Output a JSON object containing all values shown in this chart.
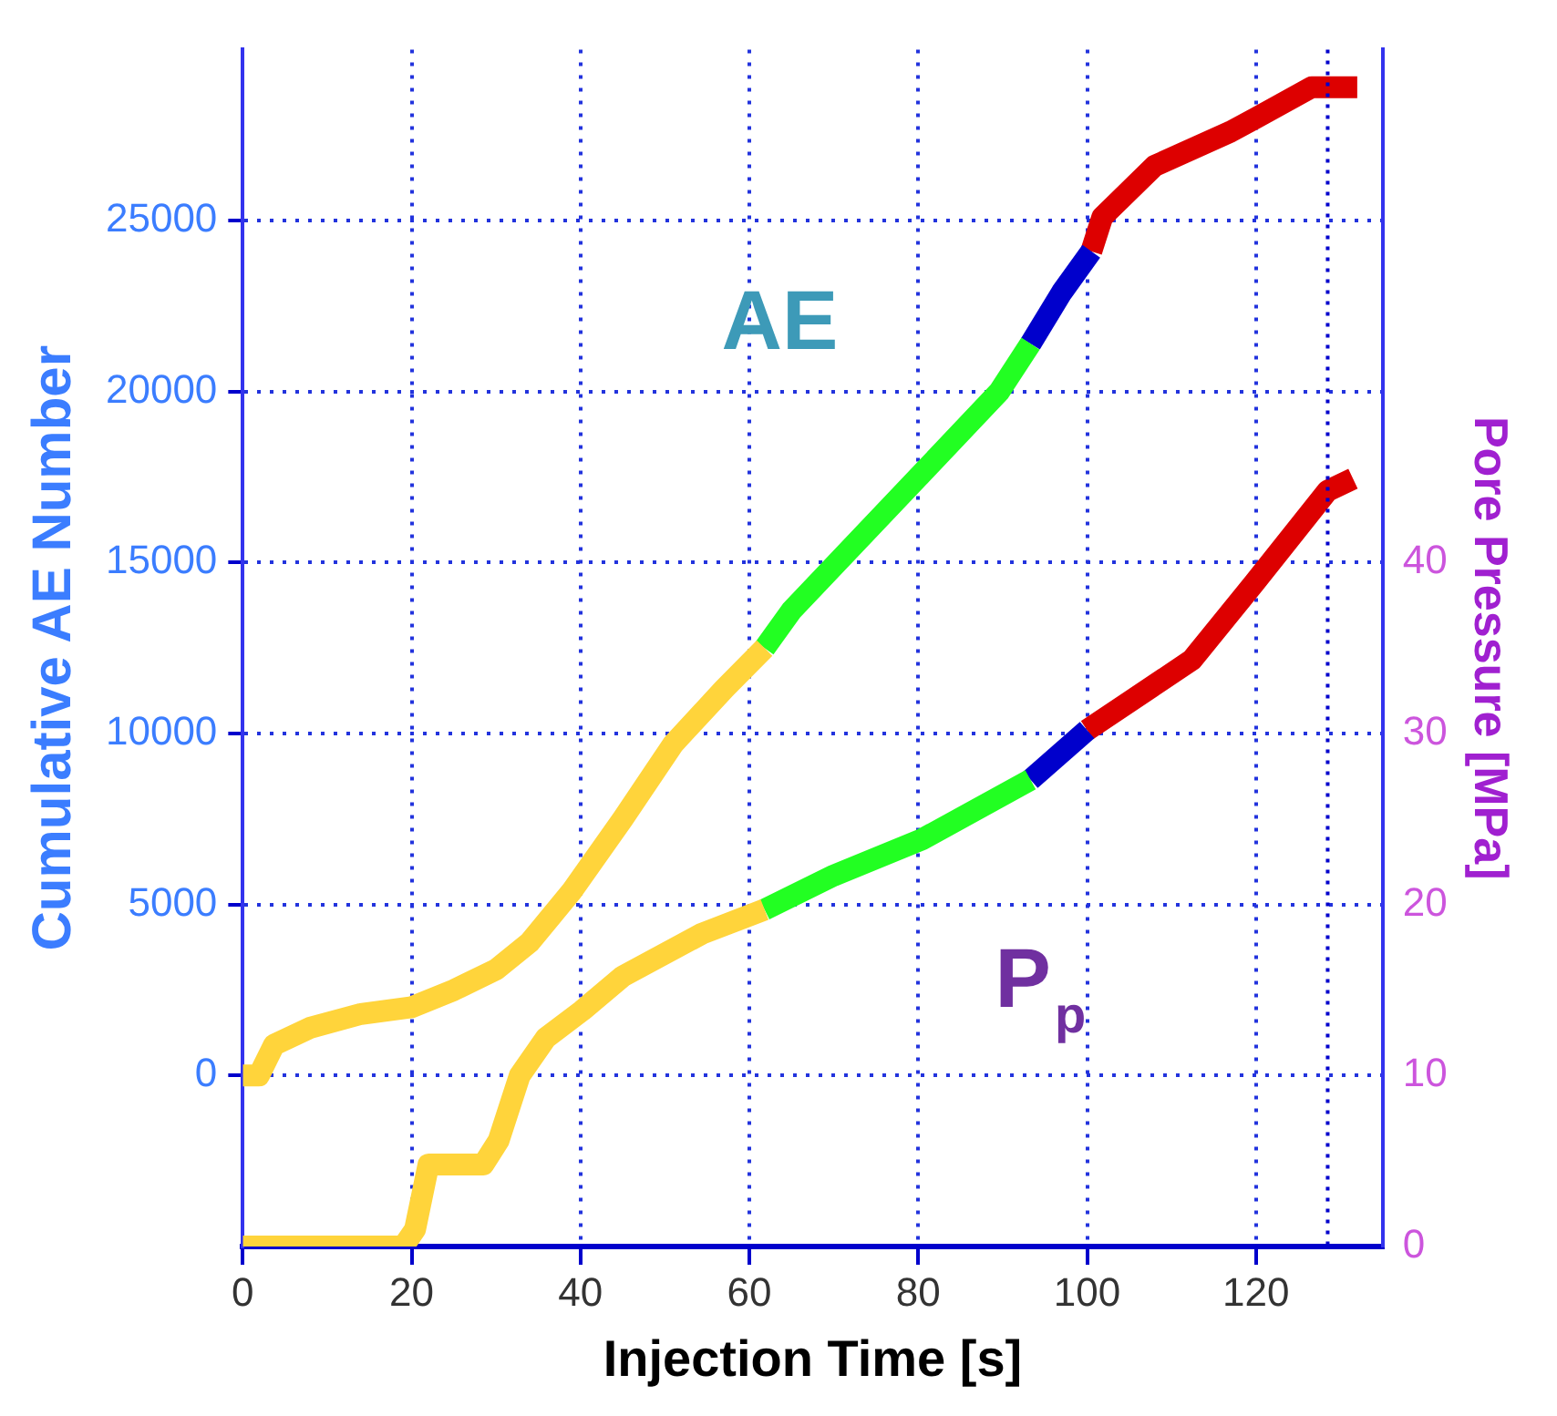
{
  "chart_data": {
    "type": "line",
    "xlabel": "Injection Time [s]",
    "ylabel": "Cumulative AE Number",
    "y2label": "Pore Pressure [MPa]",
    "annotations": [
      "AE",
      "P$_{p}$"
    ],
    "xlim": [
      0,
      135
    ],
    "xticks": [
      0,
      20,
      40,
      60,
      80,
      100,
      120
    ],
    "ylim": [
      -5000,
      30000
    ],
    "yticks": [
      0,
      5000,
      10000,
      15000,
      20000,
      25000
    ],
    "y2lim": [
      0,
      70
    ],
    "y2ticks": [
      0,
      10,
      20,
      30,
      40
    ],
    "grid": true,
    "legend": false,
    "marker": "none",
    "line_style": "solid",
    "ref_lines": [
      {
        "axis": "x",
        "value": 128.5,
        "label": null,
        "color": "#0000cc",
        "line_style": "dotted"
      }
    ],
    "series": [
      {
        "color": "#ffd43b",
        "x": [
          0,
          1.9,
          3.7,
          8,
          14,
          20,
          25,
          30,
          34,
          39,
          45,
          51,
          57,
          61.8
        ],
        "values": [
          0,
          0,
          900,
          1400,
          1800,
          2000,
          2500,
          3100,
          3900,
          5400,
          7500,
          9700,
          11300,
          12500
        ]
      },
      {
        "color": "#22ff22",
        "x": [
          61.8,
          65,
          80.4,
          89.6,
          93.3
        ],
        "values": [
          12500,
          13600,
          17600,
          20000,
          21400
        ]
      },
      {
        "color": "#0000cc",
        "x": [
          93.3,
          97,
          100.5
        ],
        "values": [
          21400,
          22900,
          24100
        ]
      },
      {
        "color": "#dd0000",
        "x": [
          100.5,
          101.8,
          108,
          117,
          120,
          126.6,
          132
        ],
        "values": [
          24100,
          25100,
          26600,
          27600,
          28000,
          28900,
          28900
        ]
      },
      {
        "color": "#ffd43b",
        "axis": "y2",
        "x": [
          0,
          19,
          20.4,
          22,
          28.5,
          30.3,
          32.8,
          35.9,
          40.2,
          45,
          54.4,
          61.8
        ],
        "values": [
          0,
          0,
          1,
          4.8,
          4.8,
          6.2,
          10,
          12.2,
          13.8,
          15.8,
          18.3,
          19.7
        ]
      },
      {
        "color": "#22ff22",
        "axis": "y2",
        "x": [
          61.8,
          70,
          80.4,
          93.3
        ],
        "values": [
          19.7,
          21.7,
          23.8,
          27.3
        ]
      },
      {
        "color": "#0000cc",
        "axis": "y2",
        "x": [
          93.3,
          100
        ],
        "values": [
          27.3,
          30.2
        ]
      },
      {
        "color": "#dd0000",
        "axis": "y2",
        "x": [
          100,
          112.4,
          119.8,
          128.5,
          131.5
        ],
        "values": [
          30.2,
          34.3,
          38.8,
          44.2,
          44.9
        ]
      }
    ]
  }
}
